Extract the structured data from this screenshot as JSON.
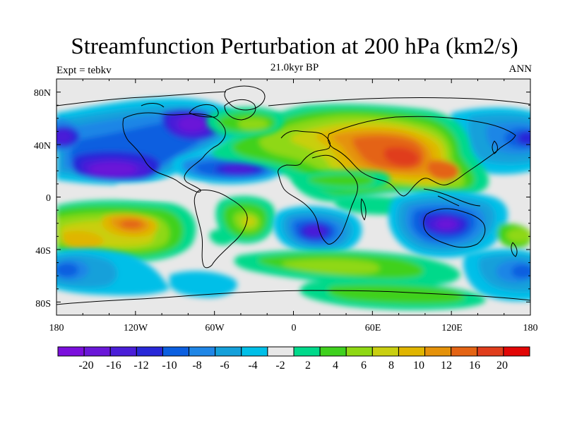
{
  "header": {
    "title": "Streamfunction Perturbation at 200 hPa (km2/s)",
    "left_label": "Expt = tebkv",
    "center_label": "21.0kyr BP",
    "right_label": "ANN"
  },
  "map": {
    "projection": "cylindrical-equidistant",
    "background_color": "#e8e8e8",
    "lat_ticks": [
      "80N",
      "40N",
      "0",
      "40S",
      "80S"
    ],
    "lon_ticks": [
      "180",
      "120W",
      "60W",
      "0",
      "60E",
      "120E",
      "180"
    ],
    "lat_range": [
      -90,
      90
    ],
    "lon_range": [
      -180,
      180
    ]
  },
  "colorbar": {
    "colors": [
      "#7b0fdc",
      "#6a17d8",
      "#4a1ed8",
      "#2828d8",
      "#0b5fe0",
      "#1f86e6",
      "#14a0da",
      "#00bfe8",
      "#e8e8e8",
      "#00d98a",
      "#3fd11e",
      "#8fd813",
      "#c9cf10",
      "#e0b500",
      "#e5920a",
      "#e46414",
      "#e03d1c",
      "#e20606"
    ],
    "labels": [
      "-20",
      "-16",
      "-12",
      "-10",
      "-8",
      "-6",
      "-4",
      "-2",
      "2",
      "4",
      "6",
      "8",
      "10",
      "12",
      "16",
      "20"
    ]
  },
  "chart_data": {
    "type": "heatmap",
    "title": "Streamfunction Perturbation at 200 hPa (km2/s)",
    "subtitle": "21.0kyr BP",
    "experiment": "tebkv",
    "period": "ANN",
    "units": "km2/s",
    "levels": [
      -20,
      -16,
      -12,
      -10,
      -8,
      -6,
      -4,
      -2,
      2,
      4,
      6,
      8,
      10,
      12,
      16,
      20
    ],
    "features": [
      {
        "lon": 90,
        "lat": 30,
        "value": 18,
        "lon_radius": 40,
        "lat_radius": 14,
        "color": "#e03d1c"
      },
      {
        "lon": 60,
        "lat": 40,
        "value": 12,
        "lon_radius": 50,
        "lat_radius": 18,
        "color": "#e5920a"
      },
      {
        "lon": 30,
        "lat": 52,
        "value": 6,
        "lon_radius": 70,
        "lat_radius": 16,
        "color": "#3fd11e"
      },
      {
        "lon": 10,
        "lat": 12,
        "value": 4,
        "lon_radius": 30,
        "lat_radius": 8,
        "color": "#00d98a"
      },
      {
        "lon": 150,
        "lat": -25,
        "value": 4,
        "lon_radius": 16,
        "lat_radius": 10,
        "color": "#00d98a"
      },
      {
        "lon": -100,
        "lat": 58,
        "value": -14,
        "lon_radius": 30,
        "lat_radius": 16,
        "color": "#4a1ed8"
      },
      {
        "lon": -130,
        "lat": 24,
        "value": -15,
        "lon_radius": 40,
        "lat_radius": 12,
        "color": "#4a1ed8"
      },
      {
        "lon": -40,
        "lat": 22,
        "value": -12,
        "lon_radius": 32,
        "lat_radius": 9,
        "color": "#2828d8"
      },
      {
        "lon": 172,
        "lat": 46,
        "value": -14,
        "lon_radius": 20,
        "lat_radius": 12,
        "color": "#4a1ed8"
      },
      {
        "lon": 20,
        "lat": -25,
        "value": -14,
        "lon_radius": 22,
        "lat_radius": 12,
        "color": "#4a1ed8"
      },
      {
        "lon": 115,
        "lat": -18,
        "value": -16,
        "lon_radius": 22,
        "lat_radius": 12,
        "color": "#4a1ed8"
      },
      {
        "lon": -125,
        "lat": -20,
        "value": 12,
        "lon_radius": 45,
        "lat_radius": 18,
        "color": "#e5920a"
      },
      {
        "lon": -30,
        "lat": -15,
        "value": 7,
        "lon_radius": 18,
        "lat_radius": 12,
        "color": "#8fd813"
      },
      {
        "lon": 40,
        "lat": -55,
        "value": 6,
        "lon_radius": 60,
        "lat_radius": 10,
        "color": "#3fd11e"
      },
      {
        "lon": -160,
        "lat": -58,
        "value": -8,
        "lon_radius": 20,
        "lat_radius": 12,
        "color": "#1f86e6"
      },
      {
        "lon": 170,
        "lat": -45,
        "value": -8,
        "lon_radius": 20,
        "lat_radius": 12,
        "color": "#1f86e6"
      },
      {
        "lon": -20,
        "lat": 57,
        "value": 6,
        "lon_radius": 30,
        "lat_radius": 10,
        "color": "#3fd11e"
      }
    ]
  }
}
